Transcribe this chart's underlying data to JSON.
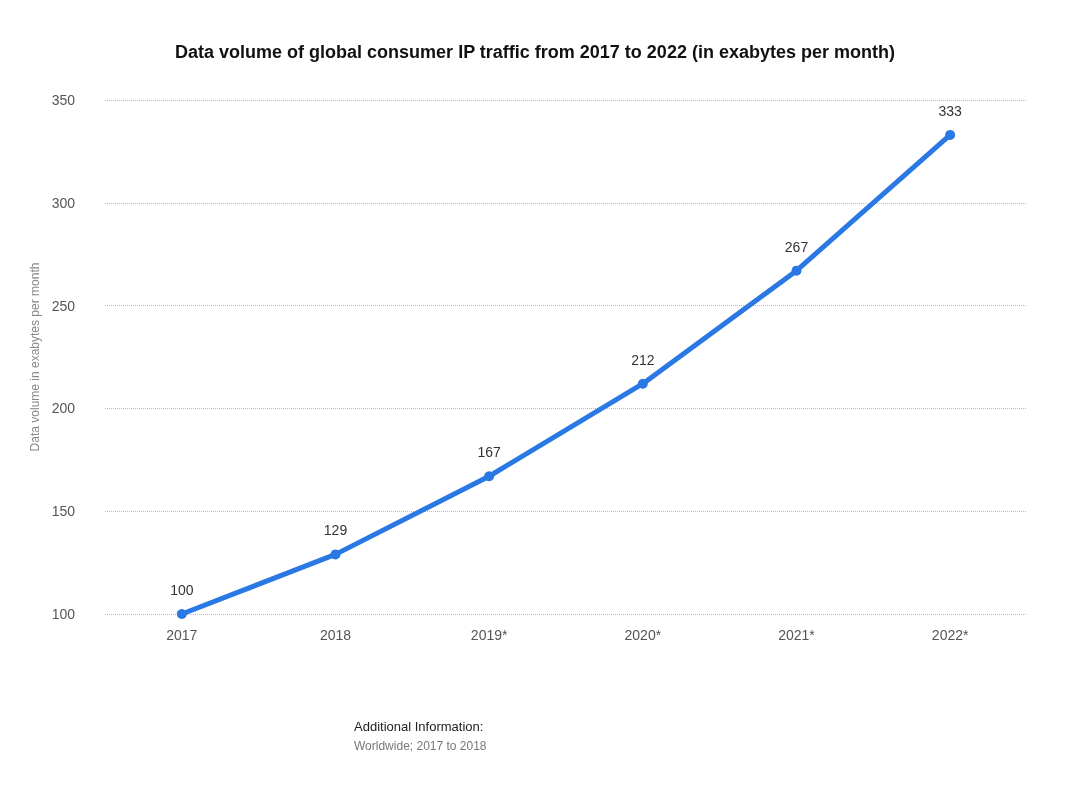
{
  "chart_data": {
    "type": "line",
    "title": "Data volume of global consumer IP traffic from 2017 to 2022 (in exabytes per month)",
    "ylabel": "Data volume in exabytes per month",
    "categories": [
      "2017",
      "2018",
      "2019*",
      "2020*",
      "2021*",
      "2022*"
    ],
    "series": [
      {
        "color": "#2a78e4",
        "values": [
          100,
          129,
          167,
          212,
          267,
          333
        ]
      }
    ],
    "ylim": [
      100,
      350
    ],
    "yticks": [
      100,
      150,
      200,
      250,
      300,
      350
    ],
    "grid": "y",
    "marker": "circle",
    "line_style": "solid",
    "data_labels": true,
    "annotations": [
      "Additional Information:",
      "Worldwide; 2017 to 2018"
    ]
  }
}
